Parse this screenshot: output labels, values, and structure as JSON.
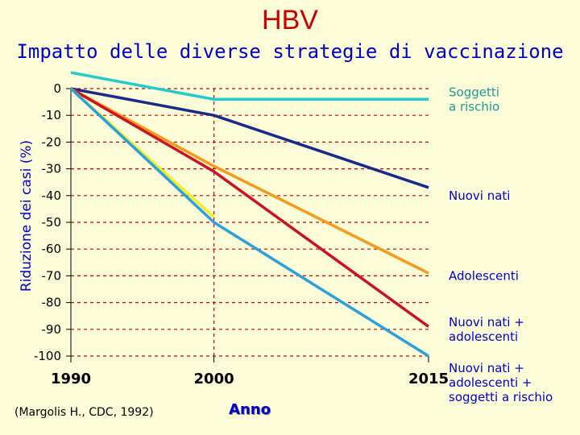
{
  "header": {
    "title": "HBV",
    "subtitle": "Impatto delle diverse strategie di vaccinazione"
  },
  "source_note": "(Margolis H., CDC, 1992)",
  "chart_data": {
    "type": "line",
    "xlabel": "Anno",
    "ylabel": "Riduzione dei casi (%)",
    "x": [
      1990,
      2000,
      2015
    ],
    "xlim": [
      1990,
      2015
    ],
    "ylim": [
      -100,
      0
    ],
    "yticks": [
      0,
      -10,
      -20,
      -30,
      -40,
      -50,
      -60,
      -70,
      -80,
      -90,
      -100
    ],
    "grid": "dashed horizontal lines (red) and dashed vertical line at 2000",
    "series": [
      {
        "name": "Soggetti a rischio",
        "color": "#22cccc",
        "points": [
          [
            1990,
            6
          ],
          [
            2000,
            -4
          ],
          [
            2015,
            -4
          ]
        ]
      },
      {
        "name": "Nuovi nati",
        "color": "#1a2a8a",
        "points": [
          [
            1990,
            0
          ],
          [
            2000,
            -10
          ],
          [
            2015,
            -37
          ]
        ]
      },
      {
        "name": "Adolescenti",
        "color": "#f59a1a",
        "points": [
          [
            1990,
            0
          ],
          [
            2000,
            -29
          ],
          [
            2015,
            -69
          ]
        ]
      },
      {
        "name": "Nuovi nati + adolescenti",
        "color": "#cc1122",
        "points": [
          [
            1990,
            0
          ],
          [
            2000,
            -31
          ],
          [
            2015,
            -89
          ]
        ]
      },
      {
        "name": "",
        "color": "#f2ee22",
        "points": [
          [
            1990,
            0
          ],
          [
            2000,
            -48
          ]
        ]
      },
      {
        "name": "Nuovi nati + adolescenti + soggetti a rischio",
        "color": "#2aa0dd",
        "points": [
          [
            1990,
            0
          ],
          [
            2000,
            -50
          ],
          [
            2015,
            -100
          ]
        ]
      }
    ],
    "legend": [
      {
        "label1": "Soggetti",
        "label2": "a rischio",
        "color": "#22cccc",
        "y": -4
      },
      {
        "label1": "Nuovi nati",
        "label2": "",
        "color": "#1a2a8a",
        "y": -40
      },
      {
        "label1": "Adolescenti",
        "label2": "",
        "color": "#f59a1a",
        "y": -70
      },
      {
        "label1": "Nuovi nati +",
        "label2": "adolescenti",
        "color": "#cc1122",
        "y": -90
      },
      {
        "label1": "Nuovi nati +",
        "label2": "adolescenti  +",
        "label3": "soggetti a rischio",
        "color": "#2aa0dd",
        "y": -110
      }
    ]
  }
}
